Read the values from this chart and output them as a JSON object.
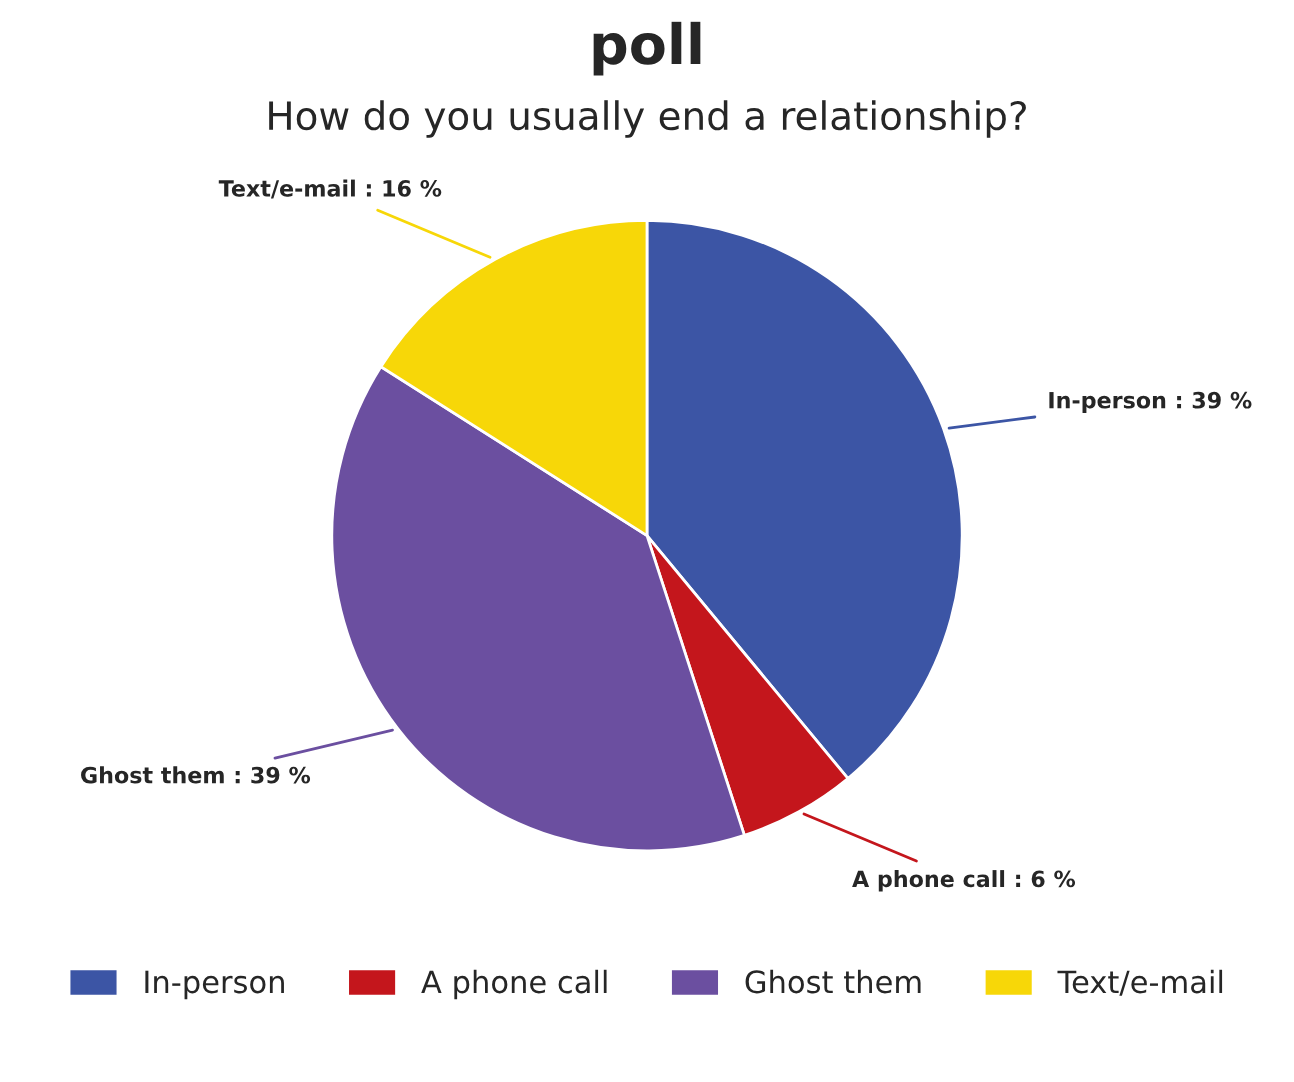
{
  "chart_data": {
    "type": "pie",
    "title": "poll",
    "subtitle": "How do you usually end a relationship?",
    "categories": [
      "In-person",
      "A phone call",
      "Ghost them",
      "Text/e-mail"
    ],
    "values": [
      39,
      6,
      39,
      16
    ],
    "colors": [
      "#3c55a5",
      "#c4161c",
      "#6b4fa0",
      "#f7d708"
    ],
    "value_labels": [
      "In-person : 39 %",
      "A phone call : 6 %",
      "Ghost them : 39 %",
      "Text/e-mail : 16 %"
    ],
    "legend": "bottom"
  }
}
